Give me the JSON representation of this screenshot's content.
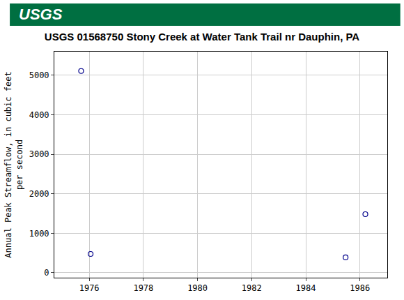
{
  "chart_data": {
    "type": "scatter",
    "title": "USGS 01568750 Stony Creek at Water Tank Trail nr Dauphin, PA",
    "y_label": "Annual Peak Streamflow, in cubic feet\nper second",
    "annotations": [
      {
        "text": "USGS"
      }
    ],
    "x": [
      1975.7,
      1976.05,
      1985.47,
      1986.2
    ],
    "values": [
      5110,
      477,
      389,
      1484
    ],
    "color": "#00008b",
    "marker": "open circle",
    "xlim": [
      1974.71,
      1987.01
    ],
    "xticks": [
      1976,
      1978,
      1980,
      1982,
      1984,
      1986
    ],
    "ylim": [
      -124,
      5600
    ],
    "yticks": [
      0,
      1000,
      2000,
      3000,
      4000,
      5000
    ],
    "grid": true
  }
}
